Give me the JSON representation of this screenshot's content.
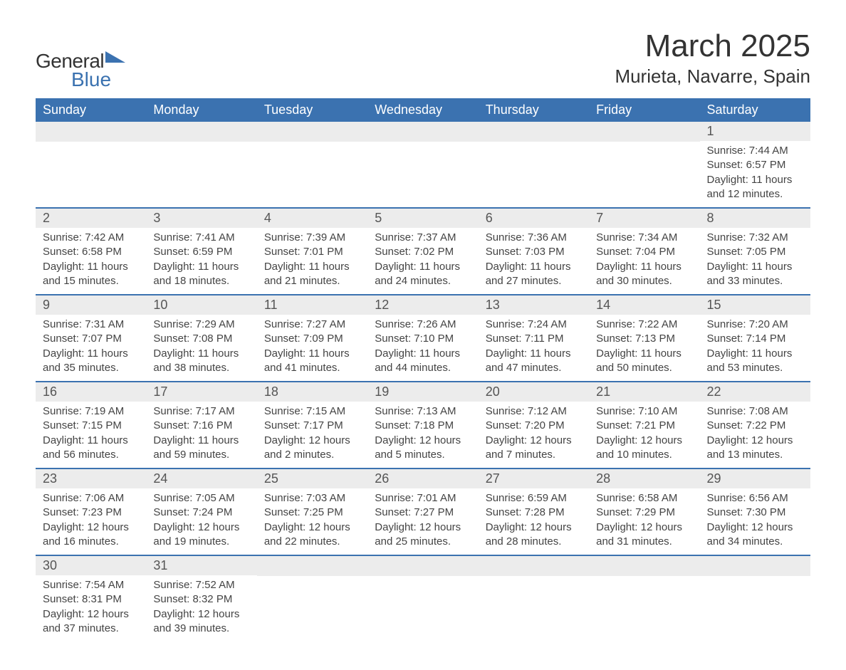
{
  "logo": {
    "main": "General",
    "blue": "Blue",
    "accent_color": "#3b72b0"
  },
  "title": "March 2025",
  "location": "Murieta, Navarre, Spain",
  "colors": {
    "header_bg": "#3b72b0",
    "header_text": "#ffffff",
    "daynum_bg": "#ececec",
    "row_divider": "#3b72b0",
    "body_text": "#444444",
    "title_text": "#333333"
  },
  "fonts": {
    "title_pt": 44,
    "location_pt": 26,
    "weekday_pt": 18,
    "daynum_pt": 18,
    "body_pt": 15
  },
  "weekdays": [
    "Sunday",
    "Monday",
    "Tuesday",
    "Wednesday",
    "Thursday",
    "Friday",
    "Saturday"
  ],
  "weeks": [
    [
      null,
      null,
      null,
      null,
      null,
      null,
      {
        "n": "1",
        "sr": "7:44 AM",
        "ss": "6:57 PM",
        "dl": "11 hours and 12 minutes."
      }
    ],
    [
      {
        "n": "2",
        "sr": "7:42 AM",
        "ss": "6:58 PM",
        "dl": "11 hours and 15 minutes."
      },
      {
        "n": "3",
        "sr": "7:41 AM",
        "ss": "6:59 PM",
        "dl": "11 hours and 18 minutes."
      },
      {
        "n": "4",
        "sr": "7:39 AM",
        "ss": "7:01 PM",
        "dl": "11 hours and 21 minutes."
      },
      {
        "n": "5",
        "sr": "7:37 AM",
        "ss": "7:02 PM",
        "dl": "11 hours and 24 minutes."
      },
      {
        "n": "6",
        "sr": "7:36 AM",
        "ss": "7:03 PM",
        "dl": "11 hours and 27 minutes."
      },
      {
        "n": "7",
        "sr": "7:34 AM",
        "ss": "7:04 PM",
        "dl": "11 hours and 30 minutes."
      },
      {
        "n": "8",
        "sr": "7:32 AM",
        "ss": "7:05 PM",
        "dl": "11 hours and 33 minutes."
      }
    ],
    [
      {
        "n": "9",
        "sr": "7:31 AM",
        "ss": "7:07 PM",
        "dl": "11 hours and 35 minutes."
      },
      {
        "n": "10",
        "sr": "7:29 AM",
        "ss": "7:08 PM",
        "dl": "11 hours and 38 minutes."
      },
      {
        "n": "11",
        "sr": "7:27 AM",
        "ss": "7:09 PM",
        "dl": "11 hours and 41 minutes."
      },
      {
        "n": "12",
        "sr": "7:26 AM",
        "ss": "7:10 PM",
        "dl": "11 hours and 44 minutes."
      },
      {
        "n": "13",
        "sr": "7:24 AM",
        "ss": "7:11 PM",
        "dl": "11 hours and 47 minutes."
      },
      {
        "n": "14",
        "sr": "7:22 AM",
        "ss": "7:13 PM",
        "dl": "11 hours and 50 minutes."
      },
      {
        "n": "15",
        "sr": "7:20 AM",
        "ss": "7:14 PM",
        "dl": "11 hours and 53 minutes."
      }
    ],
    [
      {
        "n": "16",
        "sr": "7:19 AM",
        "ss": "7:15 PM",
        "dl": "11 hours and 56 minutes."
      },
      {
        "n": "17",
        "sr": "7:17 AM",
        "ss": "7:16 PM",
        "dl": "11 hours and 59 minutes."
      },
      {
        "n": "18",
        "sr": "7:15 AM",
        "ss": "7:17 PM",
        "dl": "12 hours and 2 minutes."
      },
      {
        "n": "19",
        "sr": "7:13 AM",
        "ss": "7:18 PM",
        "dl": "12 hours and 5 minutes."
      },
      {
        "n": "20",
        "sr": "7:12 AM",
        "ss": "7:20 PM",
        "dl": "12 hours and 7 minutes."
      },
      {
        "n": "21",
        "sr": "7:10 AM",
        "ss": "7:21 PM",
        "dl": "12 hours and 10 minutes."
      },
      {
        "n": "22",
        "sr": "7:08 AM",
        "ss": "7:22 PM",
        "dl": "12 hours and 13 minutes."
      }
    ],
    [
      {
        "n": "23",
        "sr": "7:06 AM",
        "ss": "7:23 PM",
        "dl": "12 hours and 16 minutes."
      },
      {
        "n": "24",
        "sr": "7:05 AM",
        "ss": "7:24 PM",
        "dl": "12 hours and 19 minutes."
      },
      {
        "n": "25",
        "sr": "7:03 AM",
        "ss": "7:25 PM",
        "dl": "12 hours and 22 minutes."
      },
      {
        "n": "26",
        "sr": "7:01 AM",
        "ss": "7:27 PM",
        "dl": "12 hours and 25 minutes."
      },
      {
        "n": "27",
        "sr": "6:59 AM",
        "ss": "7:28 PM",
        "dl": "12 hours and 28 minutes."
      },
      {
        "n": "28",
        "sr": "6:58 AM",
        "ss": "7:29 PM",
        "dl": "12 hours and 31 minutes."
      },
      {
        "n": "29",
        "sr": "6:56 AM",
        "ss": "7:30 PM",
        "dl": "12 hours and 34 minutes."
      }
    ],
    [
      {
        "n": "30",
        "sr": "7:54 AM",
        "ss": "8:31 PM",
        "dl": "12 hours and 37 minutes."
      },
      {
        "n": "31",
        "sr": "7:52 AM",
        "ss": "8:32 PM",
        "dl": "12 hours and 39 minutes."
      },
      null,
      null,
      null,
      null,
      null
    ]
  ],
  "labels": {
    "sunrise": "Sunrise: ",
    "sunset": "Sunset: ",
    "daylight": "Daylight: "
  }
}
